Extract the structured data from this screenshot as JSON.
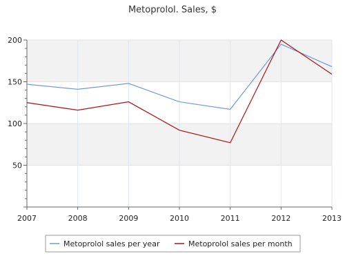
{
  "chart_data": {
    "type": "line",
    "title": "Metoprolol. Sales, $",
    "xlabel": "",
    "ylabel": "",
    "categories": [
      "2007",
      "2008",
      "2009",
      "2010",
      "2011",
      "2012",
      "2013"
    ],
    "ylim": [
      0,
      200
    ],
    "yticks": [
      "50",
      "100",
      "150",
      "200"
    ],
    "grid": true,
    "legend_position": "bottom",
    "series": [
      {
        "name": "Metoprolol sales per year",
        "color": "#6f99dc",
        "values": [
          147,
          141,
          148,
          126,
          117,
          195,
          168
        ]
      },
      {
        "name": "Metoprolol sales per month",
        "color": "#aa1111",
        "values": [
          125,
          116,
          126,
          92,
          77,
          200,
          159
        ]
      }
    ]
  }
}
